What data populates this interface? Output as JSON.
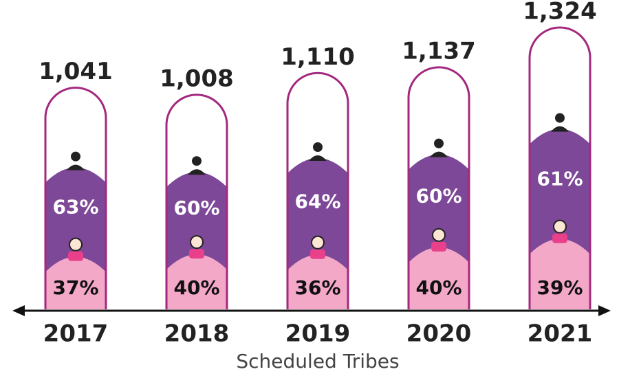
{
  "chart_data": {
    "type": "capsule_bar",
    "x_label": "Scheduled Tribes",
    "categories": [
      "2017",
      "2018",
      "2019",
      "2020",
      "2021"
    ],
    "values": [
      1041,
      1008,
      1110,
      1137,
      1324
    ],
    "value_labels": [
      "1,041",
      "1,008",
      "1,110",
      "1,137",
      "1,324"
    ],
    "outline_color": "#a3287e",
    "series": [
      {
        "color": "#f3a8c8",
        "values": [
          37,
          40,
          36,
          40,
          39
        ],
        "value_labels": [
          "37%",
          "40%",
          "36%",
          "40%",
          "39%"
        ]
      },
      {
        "color": "#7d4897",
        "values": [
          63,
          60,
          64,
          60,
          61
        ],
        "value_labels": [
          "63%",
          "60%",
          "64%",
          "60%",
          "61%"
        ]
      }
    ]
  }
}
